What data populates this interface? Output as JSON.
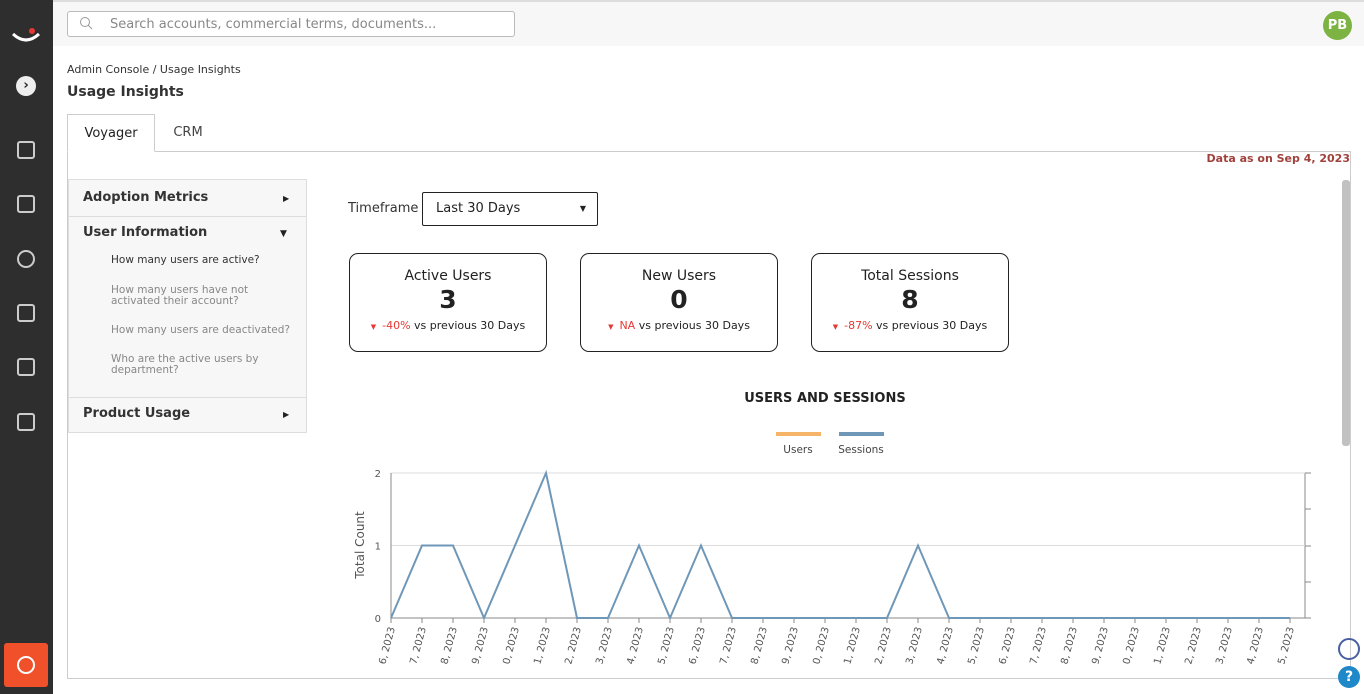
{
  "header": {
    "search_placeholder": "Search accounts, commercial terms, documents...",
    "avatar": "PB"
  },
  "breadcrumb": "Admin Console / Usage Insights",
  "page_title": "Usage Insights",
  "tabs": [
    "Voyager",
    "CRM"
  ],
  "data_note": "Data as on Sep 4, 2023",
  "menu": {
    "sections": [
      {
        "title": "Adoption Metrics",
        "items": []
      },
      {
        "title": "User Information",
        "items": [
          "How many users are active?",
          "How many users have not activated their account?",
          "How many users are deactivated?",
          "Who are the active users by department?"
        ]
      },
      {
        "title": "Product Usage",
        "items": []
      }
    ]
  },
  "timeframe": {
    "label": "Timeframe",
    "value": "Last 30 Days"
  },
  "cards": [
    {
      "title": "Active Users",
      "value": 3,
      "change": "-40%",
      "suffix": "vs previous 30 Days"
    },
    {
      "title": "New Users",
      "value": 0,
      "change": "NA",
      "suffix": "vs previous 30 Days"
    },
    {
      "title": "Total Sessions",
      "value": 8,
      "change": "-87%",
      "suffix": "vs previous 30 Days"
    }
  ],
  "chart": {
    "type": "line",
    "title": "USERS AND SESSIONS",
    "y_label": "Total Count",
    "categories": [
      "6, 2023",
      "7, 2023",
      "8, 2023",
      "9, 2023",
      "0, 2023",
      "1, 2023",
      "2, 2023",
      "3, 2023",
      "4, 2023",
      "5, 2023",
      "6, 2023",
      "7, 2023",
      "8, 2023",
      "9, 2023",
      "0, 2023",
      "1, 2023",
      "2, 2023",
      "3, 2023",
      "4, 2023",
      "5, 2023",
      "6, 2023",
      "7, 2023",
      "8, 2023",
      "9, 2023",
      "0, 2023",
      "1, 2023",
      "2, 2023",
      "3, 2023",
      "4, 2023",
      "5, 2023"
    ],
    "series": [
      {
        "name": "Users",
        "color": "#f5b468",
        "values": [
          null,
          null,
          null,
          null,
          null,
          null,
          null,
          null,
          null,
          null,
          null,
          null,
          null,
          null,
          null,
          null,
          null,
          null,
          null,
          null,
          null,
          null,
          null,
          null,
          null,
          null,
          null,
          null,
          null,
          null
        ]
      },
      {
        "name": "Sessions",
        "color": "#6f97b8",
        "values": [
          0,
          1,
          1,
          0,
          1,
          2,
          0,
          0,
          1,
          0,
          1,
          0,
          0,
          0,
          0,
          0,
          0,
          1,
          0,
          0,
          0,
          0,
          0,
          0,
          0,
          0,
          0,
          0,
          0,
          0
        ]
      }
    ],
    "ylim": [
      0,
      2
    ],
    "yticks": [
      0,
      1,
      2
    ],
    "grid": true
  }
}
